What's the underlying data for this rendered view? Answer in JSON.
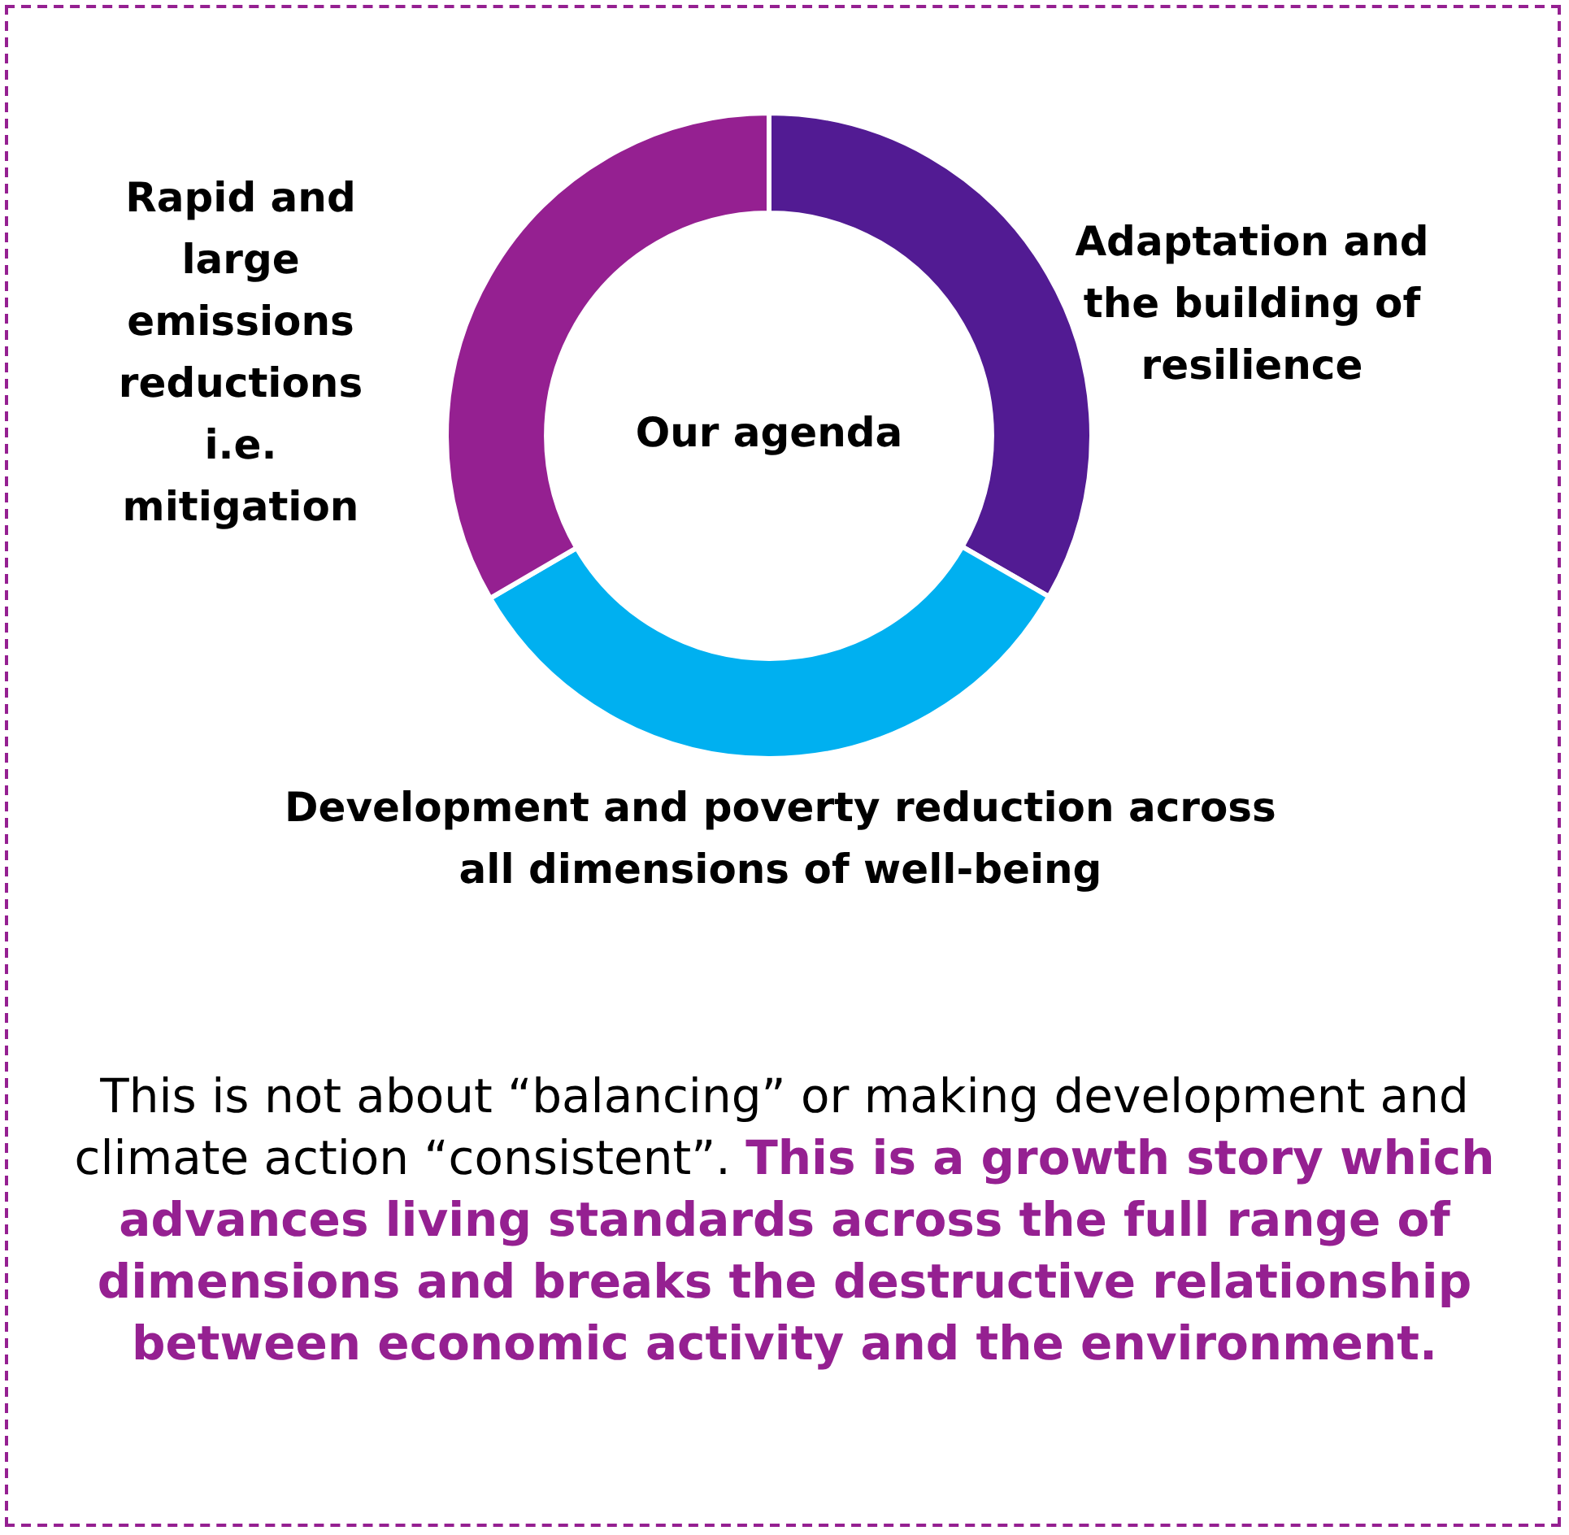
{
  "chart_data": {
    "type": "donut",
    "title": "Our agenda",
    "categories": [
      "Adaptation and the building of resilience",
      "Development and poverty reduction across all dimensions of well-being",
      "Rapid and large emissions reductions i.e. mitigation"
    ],
    "values": [
      33.3,
      33.3,
      33.4
    ],
    "colors": [
      "#521b93",
      "#00b0f0",
      "#952091"
    ],
    "legend": false,
    "annotations": [
      "This is not about “balancing” or making development and climate action “consistent”.",
      "This is a growth story which advances living standards across the full range of dimensions and breaks the destructive relationship between economic activity and the environment."
    ]
  }
}
